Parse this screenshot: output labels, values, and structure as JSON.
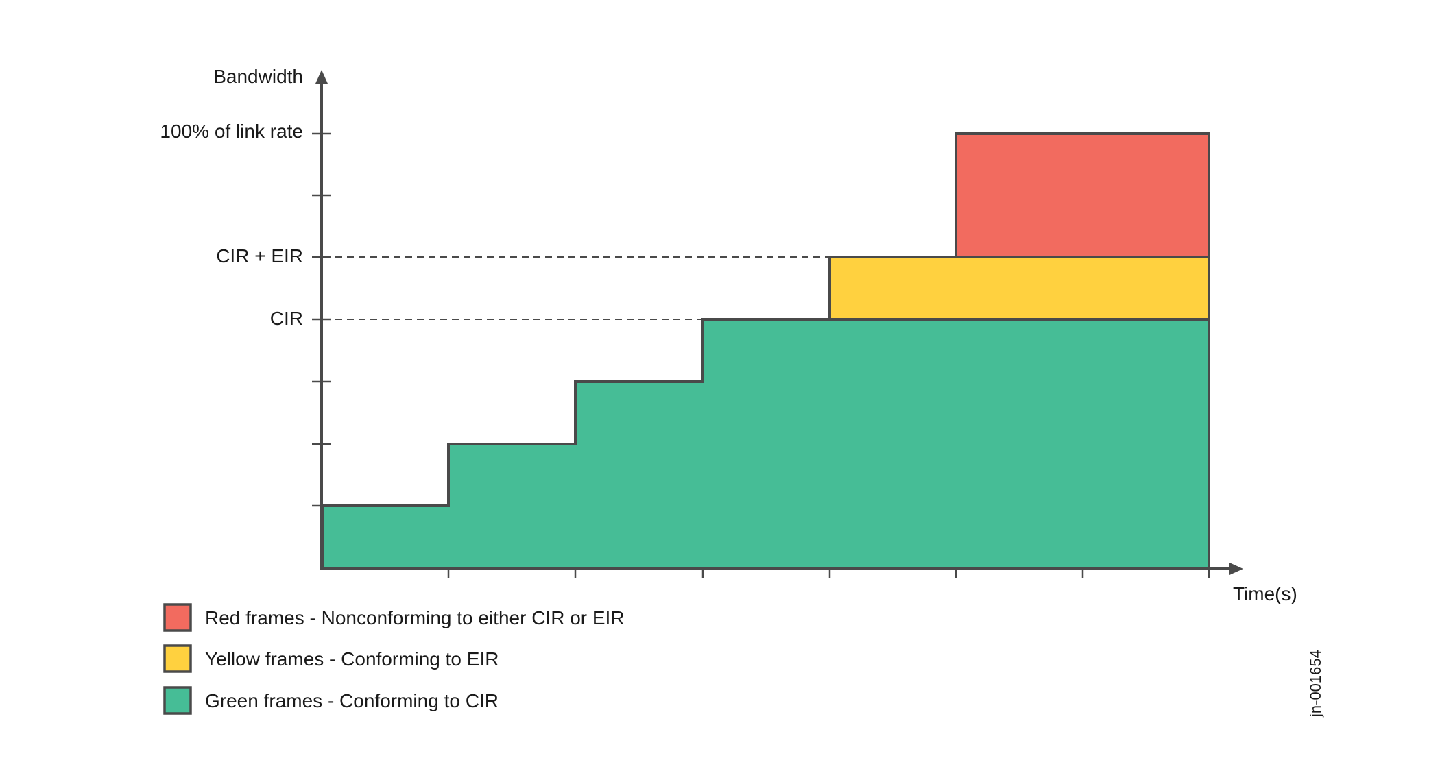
{
  "axes": {
    "y_label": "Bandwidth",
    "x_label": "Time(s)",
    "y_ticks": {
      "link_rate": "100% of link rate",
      "cir_eir": "CIR + EIR",
      "cir": "CIR"
    }
  },
  "legend": [
    {
      "label": "Red frames - Nonconforming to either CIR or EIR",
      "color": "#F26B5F"
    },
    {
      "label": "Yellow frames - Conforming to EIR",
      "color": "#FFD13F"
    },
    {
      "label": "Green frames - Conforming to CIR",
      "color": "#46BD96"
    }
  ],
  "figure_id": "jn-001654",
  "colors": {
    "red": "#F26B5F",
    "yellow": "#FFD13F",
    "green": "#46BD96",
    "stroke": "#4a4a4a"
  }
}
